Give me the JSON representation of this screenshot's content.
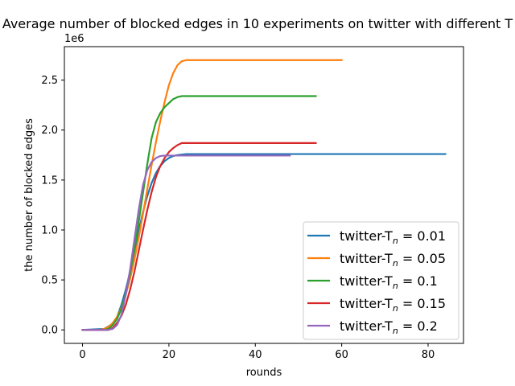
{
  "chart_data": {
    "type": "line",
    "title": "Average number of blocked edges in 10 experiments on twitter with different T",
    "xlabel": "rounds",
    "ylabel": "the number of blocked edges",
    "y_offset_text": "1e6",
    "xlim": [
      -4.2,
      88.2
    ],
    "ylim": [
      -0.135,
      2.835
    ],
    "xticks": [
      0,
      20,
      40,
      60,
      80
    ],
    "xtick_labels": [
      "0",
      "20",
      "40",
      "60",
      "80"
    ],
    "yticks": [
      0.0,
      0.5,
      1.0,
      1.5,
      2.0,
      2.5
    ],
    "ytick_labels": [
      "0.0",
      "0.5",
      "1.0",
      "1.5",
      "2.0",
      "2.5"
    ],
    "grid": false,
    "legend_position": "lower right",
    "series": [
      {
        "name": "twitter-T_n = 0.01",
        "legend_prefix": "twitter-T",
        "legend_sub": "n",
        "legend_suffix": " =  0.01",
        "color": "#1f77b4",
        "x": [
          0,
          5,
          7,
          8,
          9,
          10,
          11,
          12,
          13,
          14,
          15,
          16,
          17,
          18,
          19,
          20,
          21,
          22,
          23,
          24,
          30,
          84
        ],
        "y": [
          0,
          0.01,
          0.06,
          0.13,
          0.25,
          0.4,
          0.58,
          0.78,
          0.99,
          1.18,
          1.34,
          1.47,
          1.57,
          1.64,
          1.69,
          1.72,
          1.74,
          1.75,
          1.755,
          1.76,
          1.76,
          1.76
        ]
      },
      {
        "name": "twitter-T_n = 0.05",
        "legend_prefix": "twitter-T",
        "legend_sub": "n",
        "legend_suffix": " =  0.05",
        "color": "#ff7f0e",
        "x": [
          0,
          4,
          5,
          6,
          7,
          8,
          9,
          10,
          11,
          12,
          13,
          14,
          15,
          16,
          17,
          18,
          19,
          20,
          21,
          22,
          23,
          24,
          25,
          30,
          60
        ],
        "y": [
          0,
          0.0,
          0.01,
          0.03,
          0.07,
          0.13,
          0.22,
          0.35,
          0.51,
          0.7,
          0.92,
          1.16,
          1.41,
          1.65,
          1.88,
          2.09,
          2.28,
          2.45,
          2.57,
          2.65,
          2.69,
          2.7,
          2.7,
          2.7,
          2.7
        ]
      },
      {
        "name": "twitter-T_n = 0.1",
        "legend_prefix": "twitter-T",
        "legend_sub": "n",
        "legend_suffix": " =  0.1",
        "color": "#2ca02c",
        "x": [
          0,
          5,
          6,
          7,
          8,
          9,
          10,
          11,
          12,
          13,
          14,
          15,
          16,
          17,
          18,
          19,
          20,
          21,
          22,
          23,
          24,
          30,
          54
        ],
        "y": [
          0,
          0.0,
          0.01,
          0.05,
          0.11,
          0.21,
          0.36,
          0.56,
          0.8,
          1.08,
          1.37,
          1.66,
          1.92,
          2.08,
          2.17,
          2.23,
          2.27,
          2.31,
          2.33,
          2.34,
          2.34,
          2.34,
          2.34
        ]
      },
      {
        "name": "twitter-T_n = 0.15",
        "legend_prefix": "twitter-T",
        "legend_sub": "n",
        "legend_suffix": " =  0.15",
        "color": "#d62728",
        "x": [
          0,
          6,
          7,
          8,
          9,
          10,
          11,
          12,
          13,
          14,
          15,
          16,
          17,
          18,
          19,
          20,
          21,
          22,
          23,
          24,
          30,
          54
        ],
        "y": [
          0,
          0.0,
          0.02,
          0.07,
          0.14,
          0.25,
          0.4,
          0.58,
          0.79,
          1.0,
          1.2,
          1.38,
          1.53,
          1.64,
          1.72,
          1.78,
          1.82,
          1.85,
          1.87,
          1.87,
          1.87,
          1.87
        ]
      },
      {
        "name": "twitter-T_n = 0.2",
        "legend_prefix": "twitter-T",
        "legend_sub": "n",
        "legend_suffix": " =  0.2",
        "color": "#9467bd",
        "x": [
          0,
          6,
          7,
          8,
          9,
          10,
          11,
          12,
          13,
          14,
          15,
          16,
          17,
          18,
          19,
          20,
          22,
          30,
          48
        ],
        "y": [
          0,
          0.0,
          0.01,
          0.05,
          0.15,
          0.35,
          0.6,
          0.9,
          1.2,
          1.45,
          1.6,
          1.68,
          1.72,
          1.74,
          1.745,
          1.745,
          1.745,
          1.745,
          1.745
        ]
      }
    ]
  }
}
